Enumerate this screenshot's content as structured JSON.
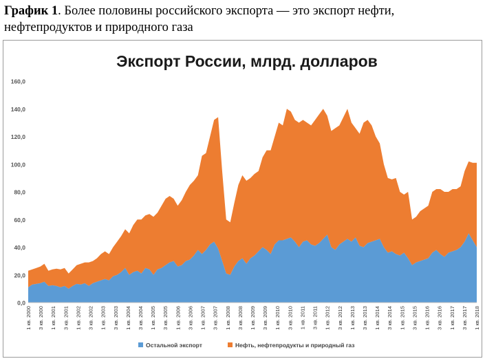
{
  "caption": {
    "label": "График 1",
    "text": ". Более половины российского экспорта — это экспорт нефти, нефтепродуктов и природного газа"
  },
  "chart_data": {
    "type": "area",
    "stacked": true,
    "title": "Экспорт России, млрд. долларов",
    "ylim": [
      0,
      160
    ],
    "yticks": [
      "0,0",
      "20,0",
      "40,0",
      "60,0",
      "80,0",
      "100,0",
      "120,0",
      "140,0",
      "160,0"
    ],
    "grid": false,
    "legend_position": "bottom",
    "x_labels": [
      "1 кв. 2000",
      "3 кв. 2000",
      "1 кв. 2001",
      "3 кв. 2001",
      "1 кв. 2002",
      "3 кв. 2002",
      "1 кв. 2003",
      "3 кв. 2003",
      "1 кв. 2004",
      "3 кв. 2004",
      "1 кв. 2005",
      "3 кв. 2005",
      "1 кв. 2006",
      "3 кв. 2006",
      "1 кв. 2007",
      "3 кв. 2007",
      "1 кв. 2008",
      "3 кв. 2008",
      "1 кв. 2009",
      "3 кв. 2009",
      "1 кв. 2010",
      "3 кв. 2010",
      "1 кв. 2011",
      "3 кв. 2011",
      "1 кв. 2012",
      "3 кв. 2012",
      "1 кв. 2013",
      "3 кв. 2013",
      "1 кв. 2014",
      "3 кв. 2014",
      "1 кв. 2015",
      "3 кв. 2015",
      "1 кв. 2016",
      "3 кв. 2016",
      "1 кв. 2017",
      "3 кв. 2017",
      "1 кв. 2018"
    ],
    "series": [
      {
        "name": "Остальной экспорт",
        "color": "#5b9bd5",
        "values": [
          11,
          13,
          13.5,
          14,
          15,
          12,
          12.5,
          12,
          11,
          12,
          10,
          12,
          13.5,
          13,
          14,
          12,
          14,
          15,
          16,
          17,
          16,
          19,
          20,
          22,
          25,
          20,
          22,
          23,
          21,
          25,
          24,
          20,
          24,
          25,
          27,
          29,
          30,
          26,
          27,
          30,
          31,
          34,
          38,
          35,
          38,
          42,
          44,
          39,
          30,
          21,
          20,
          26,
          30,
          32,
          28,
          32,
          34,
          37,
          40,
          38,
          35,
          42,
          45,
          45,
          46,
          47,
          44,
          40,
          44,
          45,
          42,
          41,
          43,
          46,
          49,
          40,
          38,
          42,
          44,
          46,
          44,
          47,
          41,
          40,
          43,
          44,
          45,
          46,
          40,
          36,
          37,
          35,
          34,
          36,
          32,
          27,
          29,
          30,
          31,
          32,
          36,
          38,
          35,
          33,
          36,
          37,
          38,
          40,
          44,
          50,
          45,
          40
        ],
        "total": [
          23,
          24,
          25,
          26,
          28,
          23,
          24,
          24.5,
          24,
          25,
          21,
          24,
          27,
          28,
          29,
          29,
          30,
          32,
          35,
          37,
          35,
          40,
          44,
          48,
          53,
          50,
          56,
          60,
          60,
          63,
          64,
          62,
          65,
          70,
          75,
          77,
          75,
          70,
          74,
          80,
          85,
          88,
          92,
          106,
          108,
          120,
          132,
          134,
          95,
          60,
          58,
          72,
          85,
          92,
          88,
          90,
          93,
          95,
          105,
          110,
          110,
          120,
          130,
          128,
          140,
          138,
          132,
          130,
          132,
          130,
          128,
          132,
          136,
          140,
          135,
          124,
          126,
          128,
          134,
          140,
          130,
          126,
          122,
          130,
          132,
          128,
          120,
          115,
          100,
          90,
          89,
          90,
          80,
          78,
          80,
          60,
          62,
          66,
          68,
          70,
          80,
          82,
          82,
          80,
          80,
          82,
          82,
          84,
          95,
          102,
          101,
          101
        ]
      },
      {
        "name": "Нефть, нефтепродукты и природный газ",
        "color": "#ed7d31"
      }
    ]
  }
}
